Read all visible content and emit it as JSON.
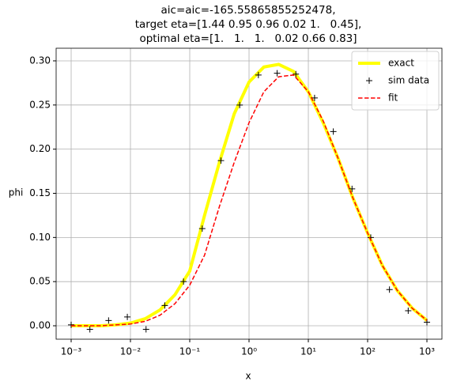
{
  "chart_data": {
    "type": "line",
    "title": [
      "aic=aic=-165.55865855252478,",
      "target eta=[1.44 0.95 0.96 0.02 1.   0.45],",
      "optimal eta=[1.   1.   1.   0.02 0.66 0.83]"
    ],
    "xlabel": "x",
    "ylabel": "phi",
    "xscale": "log",
    "grid": true,
    "legend": "upper right",
    "xlim": [
      0.000558,
      1791
    ],
    "ylim": [
      -0.0152,
      0.3143
    ],
    "xticks": [
      {
        "value": 0.001,
        "label": "10⁻³"
      },
      {
        "value": 0.01,
        "label": "10⁻²"
      },
      {
        "value": 0.1,
        "label": "10⁻¹"
      },
      {
        "value": 1,
        "label": "10⁰"
      },
      {
        "value": 10,
        "label": "10¹"
      },
      {
        "value": 100,
        "label": "10²"
      },
      {
        "value": 1000,
        "label": "10³"
      }
    ],
    "yticks": [
      {
        "value": 0,
        "label": "0.00"
      },
      {
        "value": 0.05,
        "label": "0.05"
      },
      {
        "value": 0.1,
        "label": "0.10"
      },
      {
        "value": 0.15,
        "label": "0.15"
      },
      {
        "value": 0.2,
        "label": "0.20"
      },
      {
        "value": 0.25,
        "label": "0.25"
      },
      {
        "value": 0.3,
        "label": "0.30"
      }
    ],
    "series": [
      {
        "name": "exact",
        "color": "#ffff00",
        "linestyle": "solid",
        "linewidth": 4,
        "x": [
          0.001,
          0.001778,
          0.003162,
          0.005623,
          0.01,
          0.01778,
          0.03162,
          0.05623,
          0.1,
          0.1778,
          0.3162,
          0.5623,
          1,
          1.778,
          3.162,
          5.623,
          10,
          17.78,
          31.62,
          56.23,
          100,
          177.8,
          316.2,
          562.3,
          1000
        ],
        "values": [
          0.0,
          0.0,
          0.0,
          0.001,
          0.003,
          0.008,
          0.018,
          0.035,
          0.062,
          0.125,
          0.185,
          0.24,
          0.276,
          0.293,
          0.296,
          0.288,
          0.265,
          0.23,
          0.19,
          0.145,
          0.105,
          0.068,
          0.04,
          0.02,
          0.006
        ]
      },
      {
        "name": "sim data",
        "color": "#000000",
        "linestyle": "none",
        "marker": "+",
        "x": [
          0.001,
          0.00207,
          0.00428,
          0.00886,
          0.01833,
          0.03793,
          0.07848,
          0.1624,
          0.336,
          0.6952,
          1.438,
          2.976,
          6.158,
          12.74,
          26.37,
          54.56,
          112.9,
          233.6,
          483.3,
          1000
        ],
        "values": [
          0.001,
          -0.004,
          0.006,
          0.01,
          -0.004,
          0.023,
          0.05,
          0.11,
          0.187,
          0.25,
          0.284,
          0.286,
          0.285,
          0.258,
          0.22,
          0.155,
          0.1,
          0.041,
          0.017,
          0.004
        ]
      },
      {
        "name": "fit",
        "color": "#ff0000",
        "linestyle": "dashed",
        "linewidth": 1.5,
        "x": [
          0.001,
          0.001778,
          0.003162,
          0.005623,
          0.01,
          0.01778,
          0.03162,
          0.05623,
          0.1,
          0.1778,
          0.3162,
          0.5623,
          1,
          1.778,
          3.162,
          5.623,
          10,
          17.78,
          31.62,
          56.23,
          100,
          177.8,
          316.2,
          562.3,
          1000
        ],
        "values": [
          0.0,
          0.0,
          0.0,
          0.001,
          0.002,
          0.005,
          0.012,
          0.025,
          0.046,
          0.08,
          0.135,
          0.185,
          0.23,
          0.265,
          0.282,
          0.284,
          0.265,
          0.232,
          0.19,
          0.145,
          0.105,
          0.068,
          0.04,
          0.02,
          0.006
        ]
      }
    ]
  }
}
